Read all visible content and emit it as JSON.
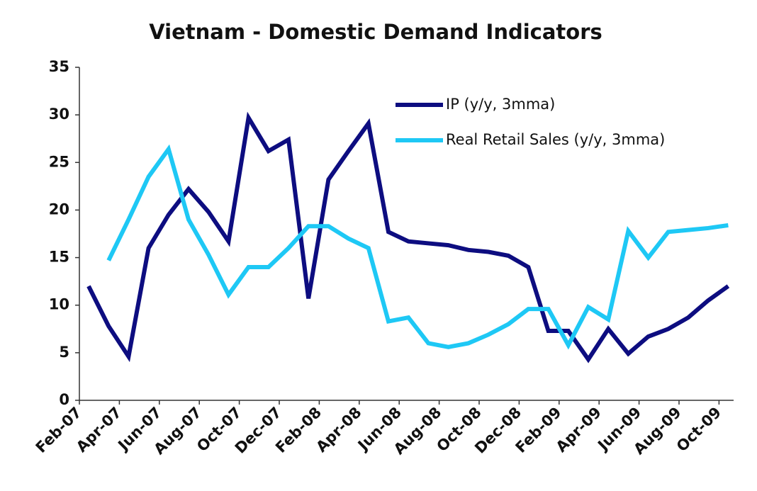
{
  "chart_data": {
    "type": "line",
    "title": "Vietnam - Domestic Demand Indicators",
    "categories": [
      "Feb-07",
      null,
      "Apr-07",
      null,
      "Jun-07",
      null,
      "Aug-07",
      null,
      "Oct-07",
      null,
      "Dec-07",
      null,
      "Feb-08",
      null,
      "Apr-08",
      null,
      "Jun-08",
      null,
      "Aug-08",
      null,
      "Oct-08",
      null,
      "Dec-08",
      null,
      "Feb-09",
      null,
      "Apr-09",
      null,
      "Jun-09",
      null,
      "Aug-09",
      null,
      "Oct-09"
    ],
    "series": [
      {
        "name": "IP (y/y, 3mma)",
        "color": "#0d0d80",
        "values": [
          12,
          7.8,
          4.6,
          16,
          19.5,
          22.2,
          19.8,
          16.7,
          29.7,
          26.2,
          27.4,
          10.7,
          23.2,
          26.2,
          29.1,
          17.7,
          16.7,
          16.5,
          16.3,
          15.8,
          15.6,
          15.2,
          14,
          7.3,
          7.3,
          4.3,
          7.5,
          4.9,
          6.7,
          7.5,
          8.7,
          10.5,
          12
        ]
      },
      {
        "name": "Real Retail Sales (y/y, 3mma)",
        "color": "#1ec8f5",
        "values": [
          null,
          14.7,
          19,
          23.5,
          26.4,
          19,
          15.3,
          11.1,
          14,
          14,
          16,
          18.3,
          18.3,
          17,
          16,
          8.3,
          8.7,
          6,
          5.6,
          6,
          6.9,
          8,
          9.6,
          9.6,
          5.8,
          9.8,
          8.5,
          17.8,
          15,
          17.7,
          17.9,
          18.1,
          18.4
        ]
      }
    ],
    "ylim": [
      0,
      35
    ],
    "yticks": [
      0,
      5,
      10,
      15,
      20,
      25,
      30,
      35
    ]
  }
}
